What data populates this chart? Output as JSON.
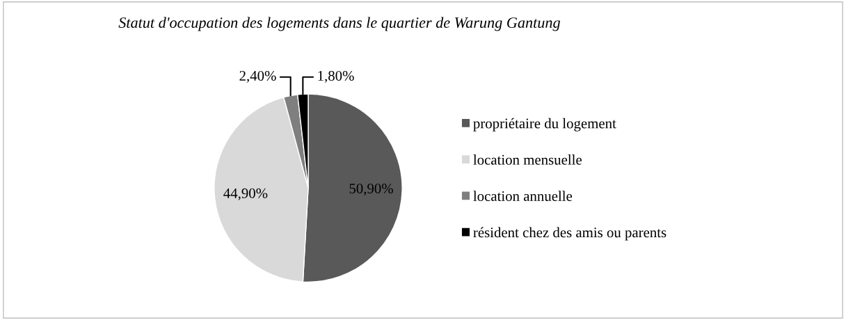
{
  "chart_data": {
    "type": "pie",
    "title": "Statut d'occupation des logements dans le quartier de Warung Gantung",
    "categories": [
      "propriétaire du logement",
      "location mensuelle",
      "location annuelle",
      "résident chez des amis ou parents"
    ],
    "values": [
      50.9,
      44.9,
      2.4,
      1.8
    ],
    "colors": [
      "#595959",
      "#d9d9d9",
      "#7f7f7f",
      "#000000"
    ],
    "value_labels": [
      "50,90%",
      "44,90%",
      "2,40%",
      "1,80%"
    ],
    "legend": "right"
  }
}
